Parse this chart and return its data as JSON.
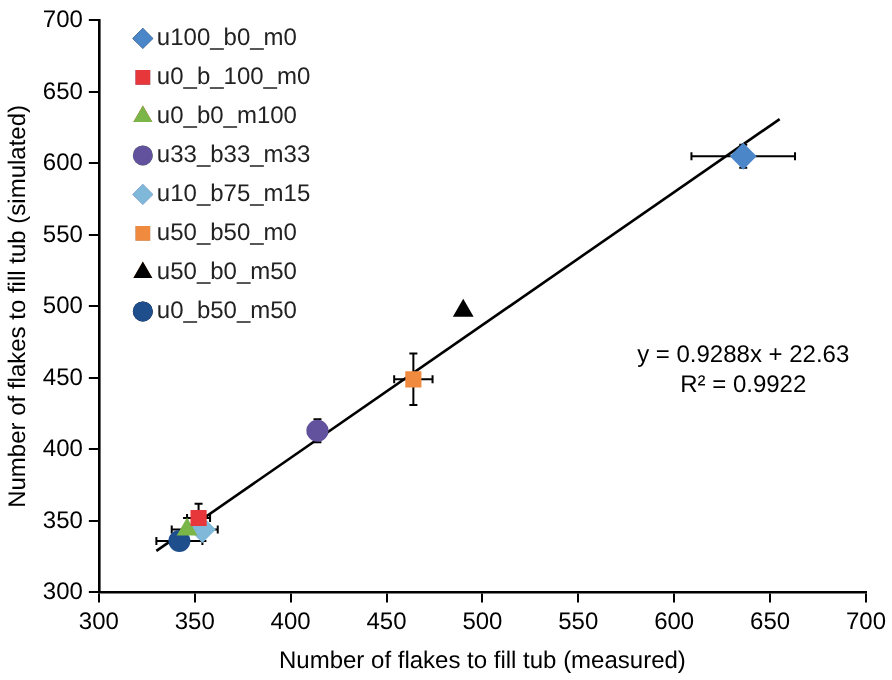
{
  "chart_data": {
    "type": "scatter",
    "xlabel": "Number of flakes to fill tub (measured)",
    "ylabel": "Number of flakes to fill tub (simulated)",
    "xlim": [
      300,
      700
    ],
    "xticks": [
      300,
      350,
      400,
      450,
      500,
      550,
      600,
      650,
      700
    ],
    "ylim": [
      300,
      700
    ],
    "yticks": [
      300,
      350,
      400,
      450,
      500,
      550,
      600,
      650,
      700
    ],
    "grid": false,
    "legend": "top left",
    "annotations": [
      "y = 0.9288x + 22.63",
      "R² = 0.9922"
    ],
    "series": [
      {
        "name": "u100_b0_m0",
        "color": "#4a86c8",
        "marker": "diamond",
        "x": [
          636
        ],
        "values": [
          605
        ],
        "errors": [
          8
        ],
        "xerrors": [
          27
        ]
      },
      {
        "name": "u0_b_100_m0",
        "color": "#e8373a",
        "marker": "square",
        "x": [
          352
        ],
        "values": [
          352
        ],
        "errors": [
          10
        ],
        "xerrors": [
          6
        ]
      },
      {
        "name": "u0_b0_m100",
        "color": "#7ab648",
        "marker": "triangle",
        "x": [
          346
        ],
        "values": [
          344
        ],
        "errors": [
          8
        ],
        "xerrors": [
          8
        ]
      },
      {
        "name": "u33_b33_m33",
        "color": "#62529e",
        "marker": "circle",
        "x": [
          414
        ],
        "values": [
          413
        ],
        "errors": [
          8
        ],
        "xerrors": [
          5
        ]
      },
      {
        "name": "u10_b75_m15",
        "color": "#7fb8d8",
        "marker": "diamond",
        "x": [
          354
        ],
        "values": [
          344
        ],
        "errors": [
          8
        ],
        "xerrors": [
          8
        ]
      },
      {
        "name": "u50_b50_m0",
        "color": "#f08a3e",
        "marker": "square",
        "x": [
          464
        ],
        "values": [
          449
        ],
        "errors": [
          18
        ],
        "xerrors": [
          10
        ]
      },
      {
        "name": "u50_b0_m50",
        "color": "#000000",
        "marker": "triangle",
        "x": [
          490
        ],
        "values": [
          497
        ]
      },
      {
        "name": "u0_b50_m50",
        "color": "#1f4e8c",
        "marker": "circle",
        "x": [
          342
        ],
        "values": [
          336
        ],
        "errors": [
          6
        ],
        "xerrors": [
          12
        ]
      },
      {
        "type": "line",
        "color": "#000000",
        "marker": "none",
        "x": [
          330,
          655
        ],
        "values": [
          329,
          631
        ]
      }
    ]
  }
}
